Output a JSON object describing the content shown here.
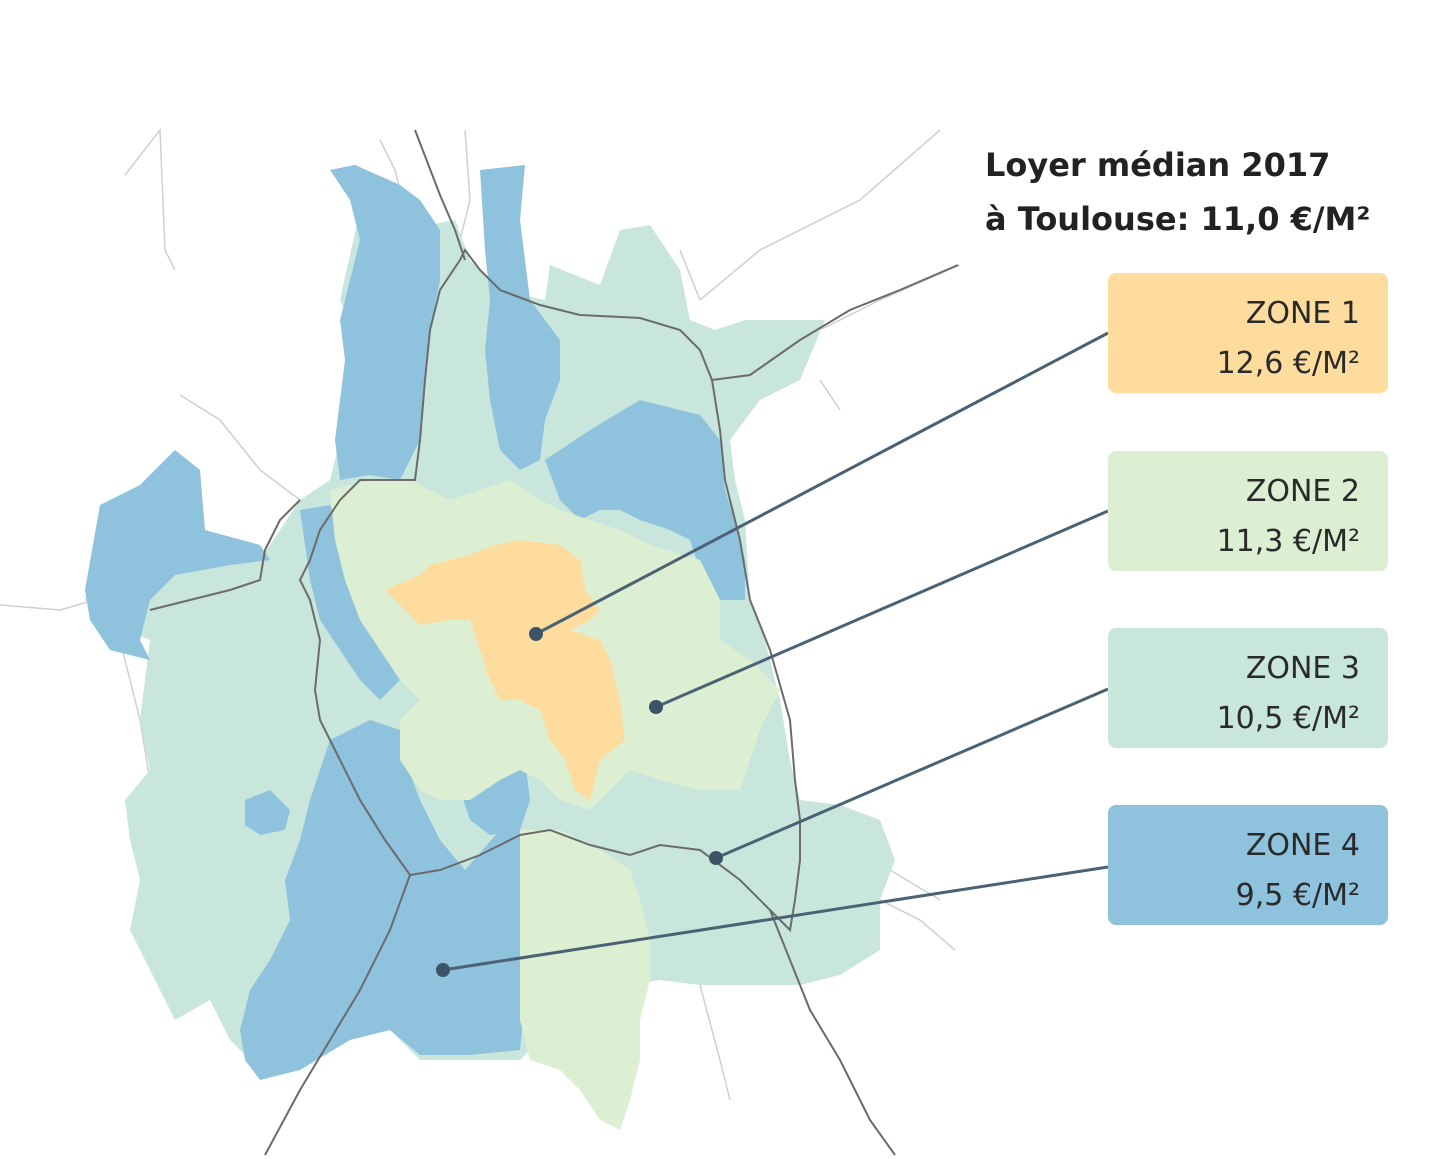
{
  "title": {
    "line1": "Loyer médian 2017",
    "line2": "à Toulouse: 11,0 €/M²"
  },
  "zones": [
    {
      "label": "ZONE 1",
      "value": "12,6 €/M²",
      "color": "#FDDC9D"
    },
    {
      "label": "ZONE 2",
      "value": "11,3 €/M²",
      "color": "#DDEFD2"
    },
    {
      "label": "ZONE 3",
      "value": "10,5 €/M²",
      "color": "#C9E6DD"
    },
    {
      "label": "ZONE 4",
      "value": "9,5 €/M²",
      "color": "#8FC2DD"
    }
  ],
  "colors": {
    "road": "#6b6b6b",
    "minor_road": "#cfcfcf",
    "leader_line": "#4a6273",
    "marker": "#3b5566"
  }
}
